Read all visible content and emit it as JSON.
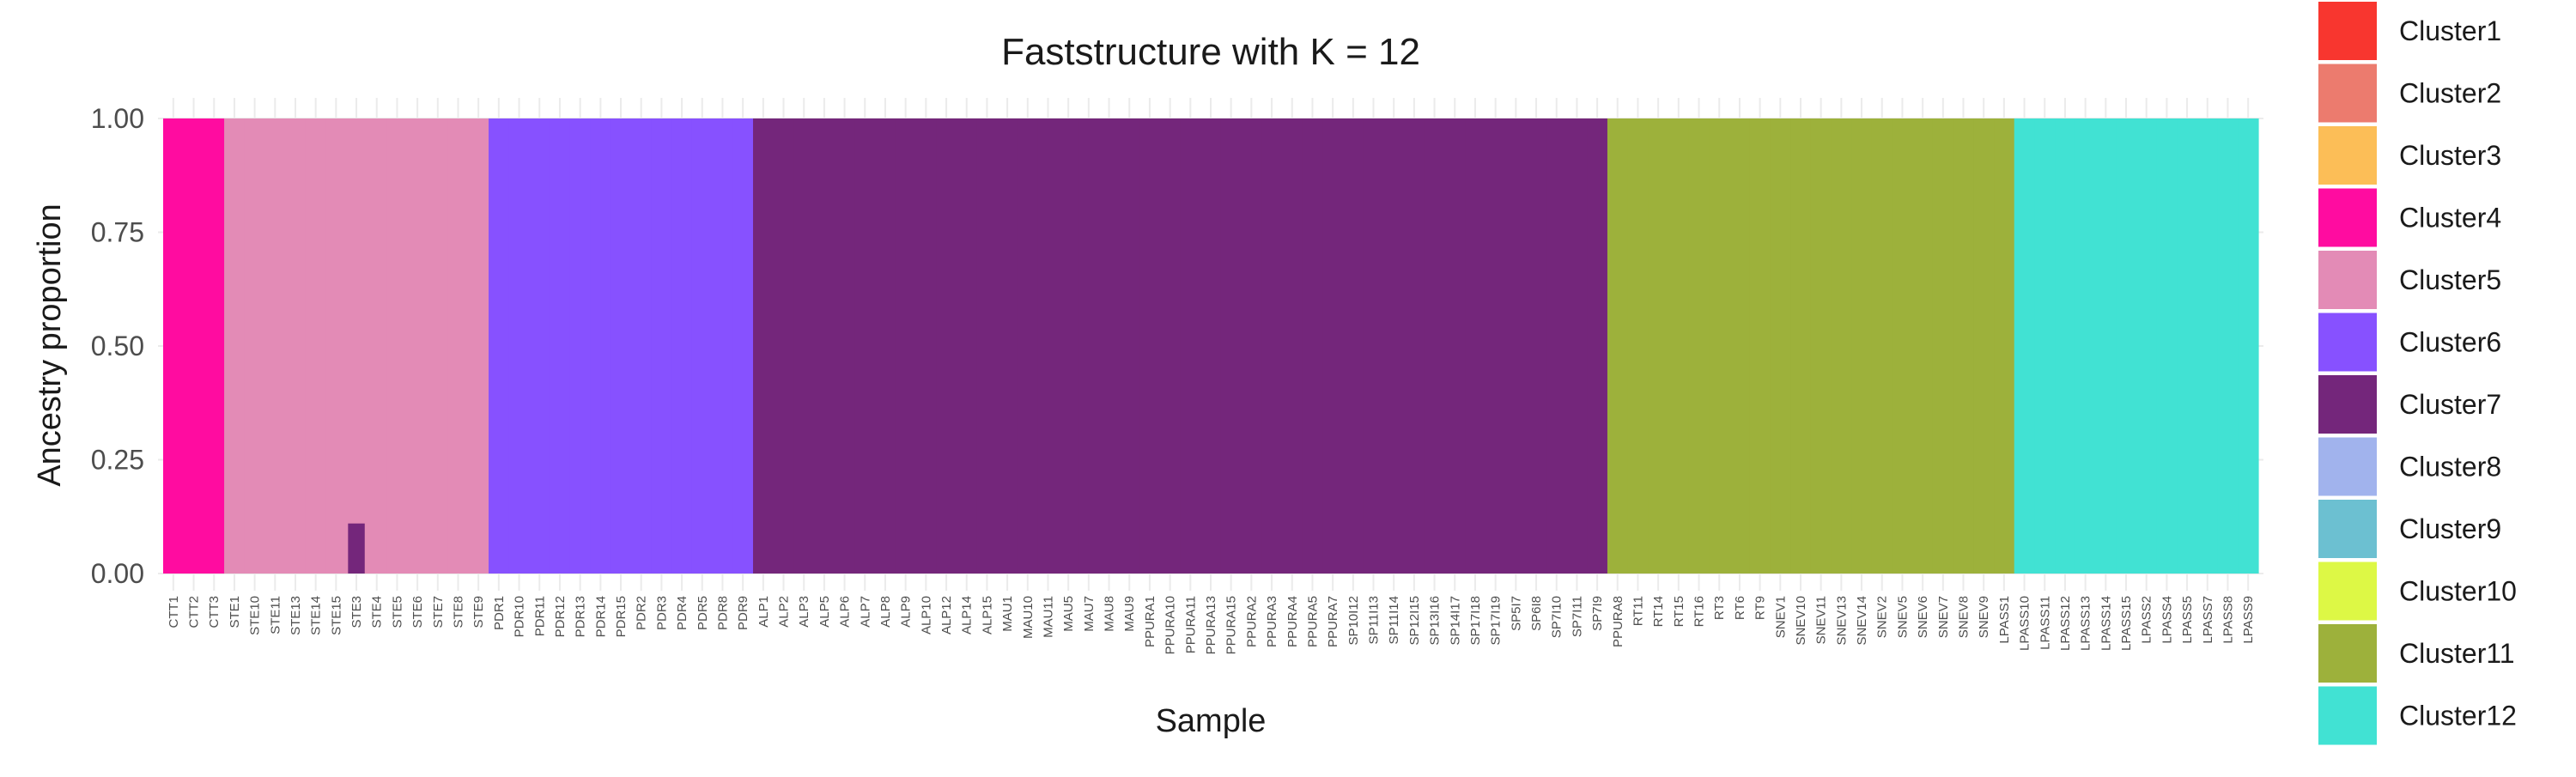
{
  "chart_data": {
    "type": "bar",
    "stacked": true,
    "title": "Faststructure with K = 12",
    "xlabel": "Sample",
    "ylabel": "Ancestry proportion",
    "ylim": [
      0,
      1
    ],
    "yticks": [
      "0.00",
      "0.25",
      "0.50",
      "0.75",
      "1.00"
    ],
    "grid": true,
    "legend_position": "right",
    "clusters": [
      {
        "name": "Cluster1",
        "color": "#F8362F"
      },
      {
        "name": "Cluster2",
        "color": "#EC7B6E"
      },
      {
        "name": "Cluster3",
        "color": "#FCBE57"
      },
      {
        "name": "Cluster4",
        "color": "#FF0CA0"
      },
      {
        "name": "Cluster5",
        "color": "#E38BB6"
      },
      {
        "name": "Cluster6",
        "color": "#8751FF"
      },
      {
        "name": "Cluster7",
        "color": "#74267B"
      },
      {
        "name": "Cluster8",
        "color": "#A1B3ED"
      },
      {
        "name": "Cluster9",
        "color": "#6CC0D1"
      },
      {
        "name": "Cluster10",
        "color": "#DDF845"
      },
      {
        "name": "Cluster11",
        "color": "#9DB13B"
      },
      {
        "name": "Cluster12",
        "color": "#41E2D3"
      }
    ],
    "groups": [
      {
        "cluster": "Cluster4",
        "samples": [
          "CTT1",
          "CTT2",
          "CTT3"
        ]
      },
      {
        "cluster": "Cluster5",
        "samples": [
          "STE1",
          "STE10",
          "STE11",
          "STE13",
          "STE14",
          "STE15",
          "STE3",
          "STE4",
          "STE5",
          "STE6",
          "STE7",
          "STE8",
          "STE9"
        ]
      },
      {
        "cluster": "Cluster6",
        "samples": [
          "PDR1",
          "PDR10",
          "PDR11",
          "PDR12",
          "PDR13",
          "PDR14",
          "PDR15",
          "PDR2",
          "PDR3",
          "PDR4",
          "PDR5",
          "PDR8",
          "PDR9"
        ]
      },
      {
        "cluster": "Cluster7",
        "samples": [
          "ALP1",
          "ALP2",
          "ALP3",
          "ALP5",
          "ALP6",
          "ALP7",
          "ALP8",
          "ALP9",
          "ALP10",
          "ALP12",
          "ALP14",
          "ALP15",
          "MAU1",
          "MAU10",
          "MAU11",
          "MAU5",
          "MAU7",
          "MAU8",
          "MAU9",
          "PPURA1",
          "PPURA10",
          "PPURA11",
          "PPURA13",
          "PPURA15",
          "PPURA2",
          "PPURA3",
          "PPURA4",
          "PPURA5",
          "PPURA7",
          "SP10I12",
          "SP11I13",
          "SP11I14",
          "SP12I15",
          "SP13I16",
          "SP14I17",
          "SP17I18",
          "SP17I19",
          "SP5I7",
          "SP6I8",
          "SP7I10",
          "SP7I11",
          "SP7I9"
        ]
      },
      {
        "cluster": "Cluster11",
        "samples": [
          "PPURA8",
          "RT11",
          "RT14",
          "RT15",
          "RT16",
          "RT3",
          "RT6",
          "RT9",
          "SNEV1",
          "SNEV10",
          "SNEV11",
          "SNEV13",
          "SNEV14",
          "SNEV2",
          "SNEV5",
          "SNEV6",
          "SNEV7",
          "SNEV8",
          "SNEV9",
          "LPASS1"
        ]
      },
      {
        "cluster": "Cluster12",
        "samples": [
          "LPASS10",
          "LPASS11",
          "LPASS12",
          "LPASS13",
          "LPASS14",
          "LPASS15",
          "LPASS2",
          "LPASS4",
          "LPASS5",
          "LPASS7",
          "LPASS8",
          "LPASS9"
        ]
      }
    ],
    "minor_components": [
      {
        "sample": "STE3",
        "cluster": "Cluster7",
        "value": 0.11
      }
    ]
  }
}
